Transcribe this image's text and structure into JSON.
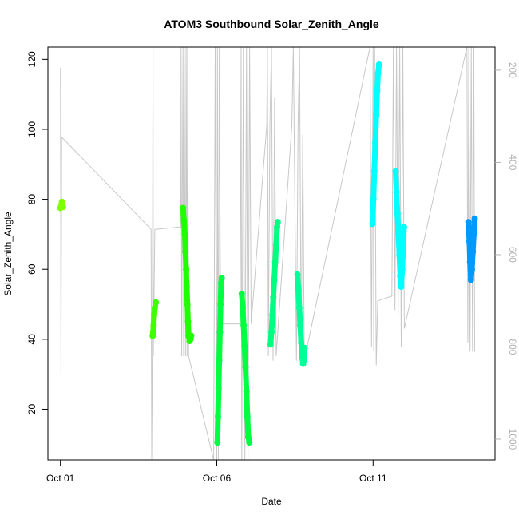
{
  "chart_data": {
    "type": "scatter",
    "title": "ATOM3 Southbound Solar_Zenith_Angle",
    "xlabel": "Date",
    "ylabel": "Solar_Zenith_Angle",
    "x_ticks": [
      "Oct 01",
      "Oct 06",
      "Oct 11"
    ],
    "x_tick_values": [
      1,
      6,
      11
    ],
    "xlim": [
      0.6,
      14.9
    ],
    "ylim": [
      5.5,
      123.5
    ],
    "y_ticks": [
      20,
      40,
      60,
      80,
      100,
      120
    ],
    "secondary_y": {
      "description": "pressure axis (reversed), drawn in light gray",
      "ticks": [
        200,
        400,
        600,
        800,
        1000
      ],
      "lim": [
        1045,
        150
      ]
    },
    "series": [
      {
        "color": "#80ff00",
        "points": [
          [
            1.0,
            77.5
          ],
          [
            1.02,
            78.0
          ],
          [
            1.05,
            79.3
          ],
          [
            1.08,
            77.8
          ]
        ]
      },
      {
        "color": "#40ff00",
        "points": [
          [
            3.95,
            41.0
          ],
          [
            3.98,
            44.0
          ],
          [
            4.0,
            47.0
          ],
          [
            4.02,
            49.0
          ],
          [
            4.05,
            50.5
          ]
        ]
      },
      {
        "color": "#20ff00",
        "points": [
          [
            4.92,
            77.5
          ],
          [
            4.95,
            74.0
          ],
          [
            4.98,
            70.0
          ],
          [
            5.0,
            65.0
          ],
          [
            5.02,
            60.0
          ],
          [
            5.04,
            55.0
          ],
          [
            5.06,
            50.0
          ],
          [
            5.08,
            45.0
          ],
          [
            5.1,
            41.0
          ],
          [
            5.13,
            39.5
          ],
          [
            5.16,
            40.0
          ],
          [
            5.18,
            41.0
          ]
        ]
      },
      {
        "color": "#00ff40",
        "points": [
          [
            6.02,
            10.5
          ],
          [
            6.04,
            18.0
          ],
          [
            6.06,
            26.0
          ],
          [
            6.08,
            34.0
          ],
          [
            6.1,
            42.0
          ],
          [
            6.12,
            50.0
          ],
          [
            6.14,
            56.0
          ],
          [
            6.16,
            57.5
          ]
        ]
      },
      {
        "color": "#00ff40",
        "points": [
          [
            6.8,
            53.0
          ],
          [
            6.83,
            49.0
          ],
          [
            6.86,
            44.0
          ],
          [
            6.89,
            38.0
          ],
          [
            6.92,
            32.0
          ],
          [
            6.95,
            25.0
          ],
          [
            6.98,
            18.0
          ],
          [
            7.01,
            12.0
          ],
          [
            7.04,
            10.5
          ]
        ]
      },
      {
        "color": "#00ff80",
        "points": [
          [
            7.72,
            38.5
          ],
          [
            7.75,
            42.0
          ],
          [
            7.78,
            47.0
          ],
          [
            7.81,
            52.0
          ],
          [
            7.84,
            57.0
          ],
          [
            7.87,
            62.0
          ],
          [
            7.9,
            67.0
          ],
          [
            7.93,
            72.0
          ],
          [
            7.95,
            73.5
          ]
        ]
      },
      {
        "color": "#00ff99",
        "points": [
          [
            8.58,
            58.5
          ],
          [
            8.61,
            54.0
          ],
          [
            8.64,
            49.0
          ],
          [
            8.67,
            44.0
          ],
          [
            8.7,
            39.0
          ],
          [
            8.73,
            35.0
          ],
          [
            8.76,
            33.0
          ],
          [
            8.79,
            34.0
          ],
          [
            8.81,
            37.5
          ]
        ]
      },
      {
        "color": "#00ffff",
        "points": [
          [
            10.98,
            73.0
          ],
          [
            11.01,
            80.0
          ],
          [
            11.04,
            88.0
          ],
          [
            11.07,
            96.0
          ],
          [
            11.1,
            104.0
          ],
          [
            11.13,
            111.0
          ],
          [
            11.16,
            116.0
          ],
          [
            11.19,
            118.5
          ]
        ]
      },
      {
        "color": "#00ffff",
        "points": [
          [
            11.72,
            88.0
          ],
          [
            11.75,
            82.0
          ],
          [
            11.78,
            76.0
          ],
          [
            11.81,
            70.0
          ],
          [
            11.84,
            64.0
          ],
          [
            11.87,
            58.0
          ],
          [
            11.9,
            55.0
          ],
          [
            11.93,
            60.0
          ],
          [
            11.96,
            66.0
          ],
          [
            11.99,
            72.0
          ]
        ]
      },
      {
        "color": "#0099ff",
        "points": [
          [
            14.05,
            73.5
          ],
          [
            14.08,
            68.0
          ],
          [
            14.1,
            62.0
          ],
          [
            14.13,
            57.0
          ],
          [
            14.16,
            60.0
          ],
          [
            14.19,
            65.0
          ],
          [
            14.22,
            70.0
          ],
          [
            14.25,
            74.5
          ]
        ]
      }
    ],
    "gray_trace": {
      "color": "#c8c8c8",
      "pressure_points": [
        [
          1.0,
          195
        ],
        [
          1.02,
          860
        ],
        [
          1.04,
          345
        ],
        [
          3.9,
          545
        ],
        [
          3.92,
          1045
        ],
        [
          3.94,
          820
        ],
        [
          3.96,
          130
        ],
        [
          3.97,
          820
        ],
        [
          4.02,
          545
        ],
        [
          4.85,
          540
        ],
        [
          4.86,
          130
        ],
        [
          4.88,
          820
        ],
        [
          4.9,
          460
        ],
        [
          4.92,
          130
        ],
        [
          4.94,
          820
        ],
        [
          4.96,
          130
        ],
        [
          5.0,
          820
        ],
        [
          5.02,
          130
        ],
        [
          5.05,
          820
        ],
        [
          5.07,
          130
        ],
        [
          5.1,
          820
        ],
        [
          5.9,
          1045
        ],
        [
          5.95,
          130
        ],
        [
          6.0,
          1045
        ],
        [
          6.02,
          130
        ],
        [
          6.05,
          1045
        ],
        [
          6.08,
          130
        ],
        [
          6.12,
          750
        ],
        [
          6.75,
          750
        ],
        [
          6.78,
          130
        ],
        [
          6.8,
          1045
        ],
        [
          6.85,
          130
        ],
        [
          6.9,
          1045
        ],
        [
          6.95,
          130
        ],
        [
          7.0,
          1045
        ],
        [
          7.05,
          130
        ],
        [
          7.1,
          750
        ],
        [
          7.6,
          320
        ],
        [
          7.62,
          130
        ],
        [
          7.65,
          820
        ],
        [
          7.7,
          320
        ],
        [
          7.75,
          130
        ],
        [
          7.8,
          830
        ],
        [
          7.85,
          260
        ],
        [
          7.9,
          820
        ],
        [
          8.4,
          320
        ],
        [
          8.45,
          130
        ],
        [
          8.55,
          830
        ],
        [
          8.6,
          320
        ],
        [
          8.65,
          130
        ],
        [
          8.7,
          830
        ],
        [
          8.75,
          340
        ],
        [
          8.8,
          830
        ],
        [
          10.9,
          130
        ],
        [
          10.95,
          800
        ],
        [
          11.0,
          130
        ],
        [
          11.02,
          810
        ],
        [
          11.05,
          130
        ],
        [
          11.1,
          840
        ],
        [
          11.15,
          700
        ],
        [
          11.6,
          690
        ],
        [
          11.65,
          130
        ],
        [
          11.7,
          720
        ],
        [
          11.75,
          130
        ],
        [
          11.8,
          730
        ],
        [
          11.85,
          130
        ],
        [
          11.9,
          800
        ],
        [
          11.95,
          130
        ],
        [
          12.0,
          760
        ],
        [
          14.0,
          130
        ],
        [
          14.03,
          790
        ],
        [
          14.06,
          130
        ],
        [
          14.1,
          810
        ],
        [
          14.14,
          130
        ],
        [
          14.18,
          810
        ],
        [
          14.22,
          130
        ],
        [
          14.25,
          810
        ]
      ]
    }
  }
}
